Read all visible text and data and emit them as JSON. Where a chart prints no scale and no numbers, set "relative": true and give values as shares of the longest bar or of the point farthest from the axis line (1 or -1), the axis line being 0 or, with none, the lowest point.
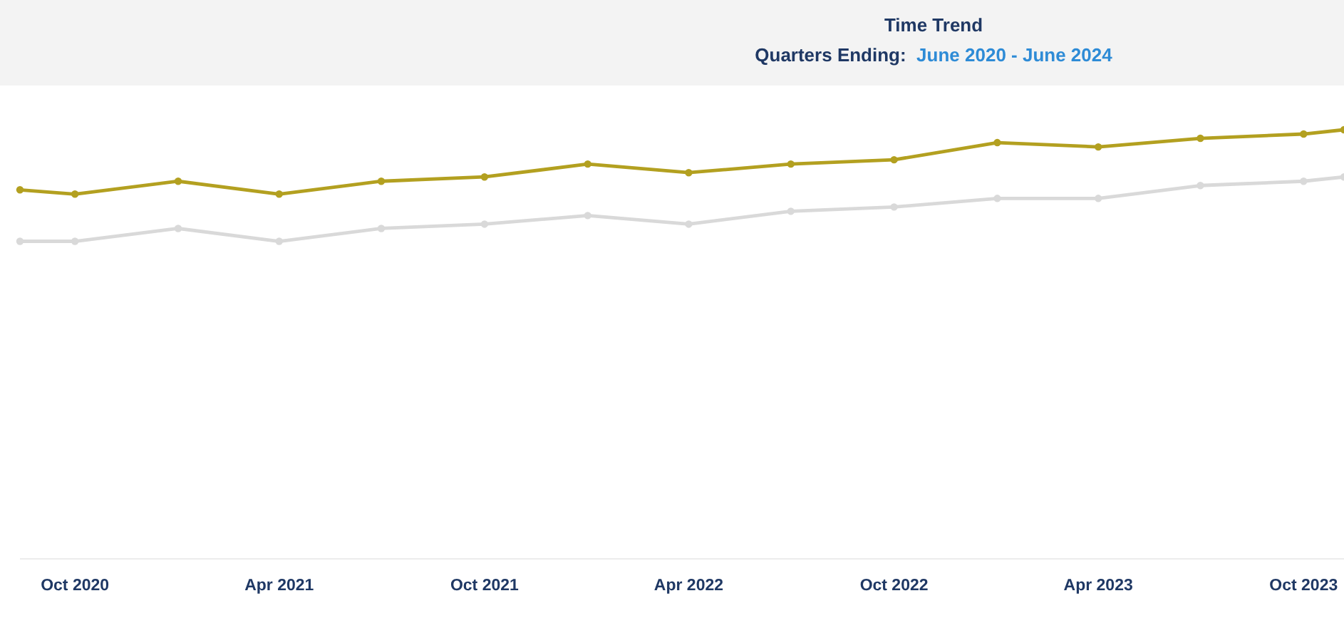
{
  "chart_data": {
    "type": "line",
    "title": "Time Trend",
    "subtitle": "Quarters Ending:  June 2020 - June 2024",
    "relative": true,
    "x": [
      "2020-08-13",
      "2020-10-01",
      "2021-01-01",
      "2021-04-01",
      "2021-07-01",
      "2021-10-01",
      "2022-01-01",
      "2022-04-01",
      "2022-07-01",
      "2022-10-01",
      "2023-01-01",
      "2023-04-01",
      "2023-07-01",
      "2023-10-01",
      "2023-11-06"
    ],
    "xlim": [
      "2020-08-13",
      "2023-11-06"
    ],
    "xticks": [
      {
        "value": "2020-10-01",
        "label": "Oct 2020"
      },
      {
        "value": "2021-04-01",
        "label": "Apr 2021"
      },
      {
        "value": "2021-10-01",
        "label": "Oct 2021"
      },
      {
        "value": "2022-04-01",
        "label": "Apr 2022"
      },
      {
        "value": "2022-10-01",
        "label": "Oct 2022"
      },
      {
        "value": "2023-04-01",
        "label": "Apr 2023"
      },
      {
        "value": "2023-10-01",
        "label": "Oct 2023"
      }
    ],
    "series": [
      {
        "color": "#b3a020",
        "values": [
          0.86,
          0.85,
          0.88,
          0.85,
          0.88,
          0.89,
          0.92,
          0.9,
          0.92,
          0.93,
          0.97,
          0.96,
          0.98,
          0.99,
          1
        ]
      },
      {
        "color": "#d9d9d9",
        "values": [
          0.74,
          0.74,
          0.77,
          0.74,
          0.77,
          0.78,
          0.8,
          0.78,
          0.81,
          0.82,
          0.84,
          0.84,
          0.87,
          0.88,
          0.89
        ]
      }
    ],
    "marker": "circle",
    "line_style": "solid",
    "grid": false
  }
}
